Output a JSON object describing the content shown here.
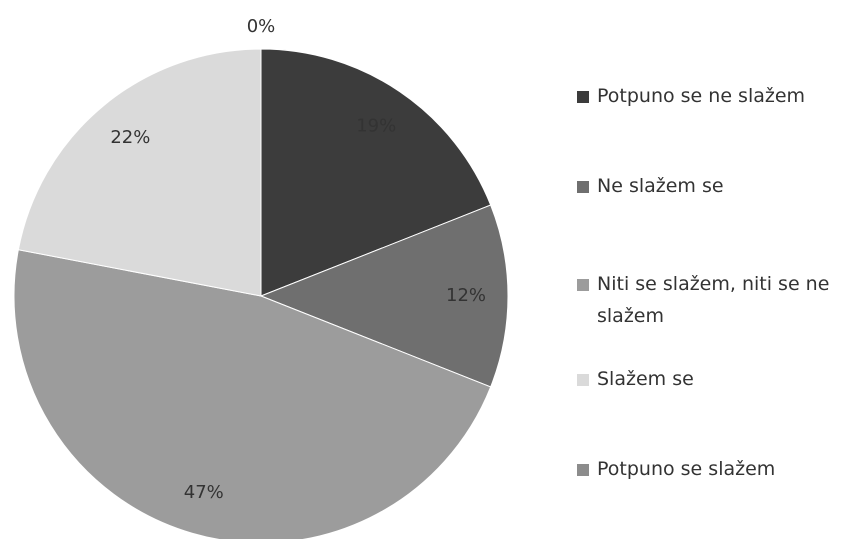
{
  "chart_data": {
    "type": "pie",
    "categories": [
      "Potpuno se ne slažem",
      "Ne slažem se",
      "Niti se slažem, niti se ne slažem",
      "Slažem se",
      "Potpuno se slažem"
    ],
    "values": [
      19,
      12,
      47,
      22,
      0
    ],
    "value_labels": [
      "19%",
      "12%",
      "47%",
      "22%",
      "0%"
    ],
    "colors": [
      "#3c3c3c",
      "#6f6f6f",
      "#9c9c9c",
      "#dadada",
      "#8c8c8c"
    ],
    "legend": "right"
  }
}
